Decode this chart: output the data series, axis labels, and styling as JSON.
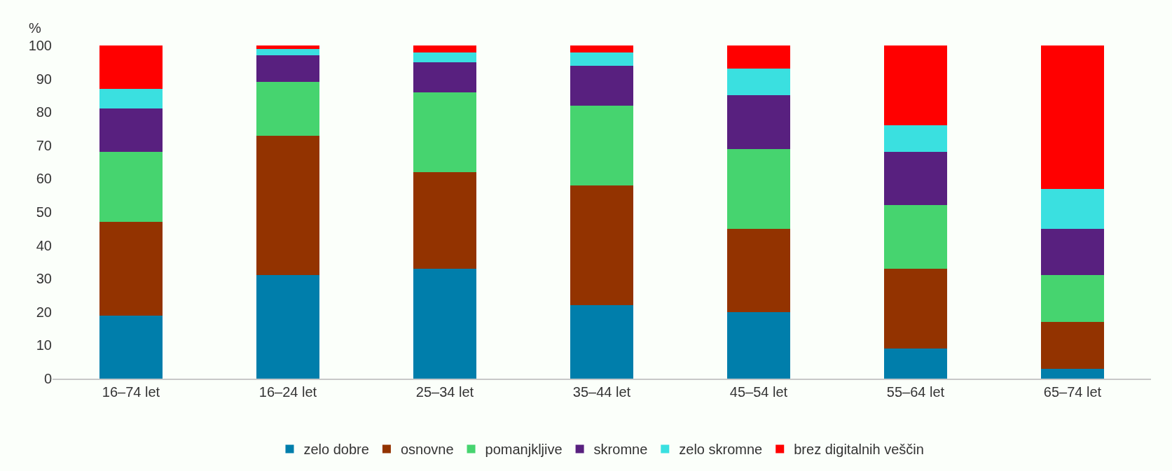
{
  "chart_data": {
    "type": "bar",
    "stacked": true,
    "ylabel": "%",
    "categories": [
      "16–74 let",
      "16–24 let",
      "25–34 let",
      "35–44 let",
      "45–54 let",
      "55–64 let",
      "65–74 let"
    ],
    "series": [
      {
        "name": "zelo dobre",
        "color": "#007eab",
        "values": [
          19,
          31,
          33,
          22,
          20,
          9,
          3
        ]
      },
      {
        "name": "osnovne",
        "color": "#933300",
        "values": [
          28,
          42,
          29,
          36,
          25,
          24,
          14
        ]
      },
      {
        "name": "pomanjkljive",
        "color": "#46d46f",
        "values": [
          21,
          16,
          24,
          24,
          24,
          19,
          14
        ]
      },
      {
        "name": "skromne",
        "color": "#58207f",
        "values": [
          13,
          8,
          9,
          12,
          16,
          16,
          14
        ]
      },
      {
        "name": "zelo skromne",
        "color": "#3ae0e0",
        "values": [
          6,
          2,
          3,
          4,
          8,
          8,
          12
        ]
      },
      {
        "name": "brez digitalnih veščin",
        "color": "#ff0000",
        "values": [
          13,
          1,
          2,
          2,
          7,
          24,
          43
        ]
      }
    ],
    "ylim": [
      0,
      100
    ],
    "yticks": [
      0,
      10,
      20,
      30,
      40,
      50,
      60,
      70,
      80,
      90,
      100
    ],
    "legend": "bottom"
  }
}
